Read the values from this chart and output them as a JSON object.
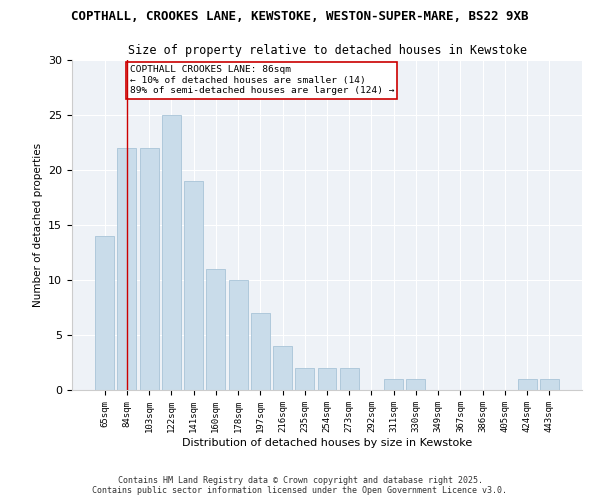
{
  "title1": "COPTHALL, CROOKES LANE, KEWSTOKE, WESTON-SUPER-MARE, BS22 9XB",
  "title2": "Size of property relative to detached houses in Kewstoke",
  "xlabel": "Distribution of detached houses by size in Kewstoke",
  "ylabel": "Number of detached properties",
  "categories": [
    "65sqm",
    "84sqm",
    "103sqm",
    "122sqm",
    "141sqm",
    "160sqm",
    "178sqm",
    "197sqm",
    "216sqm",
    "235sqm",
    "254sqm",
    "273sqm",
    "292sqm",
    "311sqm",
    "330sqm",
    "349sqm",
    "367sqm",
    "386sqm",
    "405sqm",
    "424sqm",
    "443sqm"
  ],
  "values": [
    14,
    22,
    22,
    25,
    19,
    11,
    10,
    7,
    4,
    2,
    2,
    2,
    0,
    1,
    1,
    0,
    0,
    0,
    0,
    1,
    1
  ],
  "bar_color": "#c9dcea",
  "bar_edge_color": "#a8c4d8",
  "vline_x": 1.0,
  "vline_color": "#cc0000",
  "annotation_text": "COPTHALL CROOKES LANE: 86sqm\n← 10% of detached houses are smaller (14)\n89% of semi-detached houses are larger (124) →",
  "annotation_box_color": "#ffffff",
  "annotation_box_edge": "#cc0000",
  "ylim": [
    0,
    30
  ],
  "yticks": [
    0,
    5,
    10,
    15,
    20,
    25,
    30
  ],
  "footer1": "Contains HM Land Registry data © Crown copyright and database right 2025.",
  "footer2": "Contains public sector information licensed under the Open Government Licence v3.0.",
  "bg_color": "#ffffff",
  "plot_bg_color": "#eef2f7"
}
